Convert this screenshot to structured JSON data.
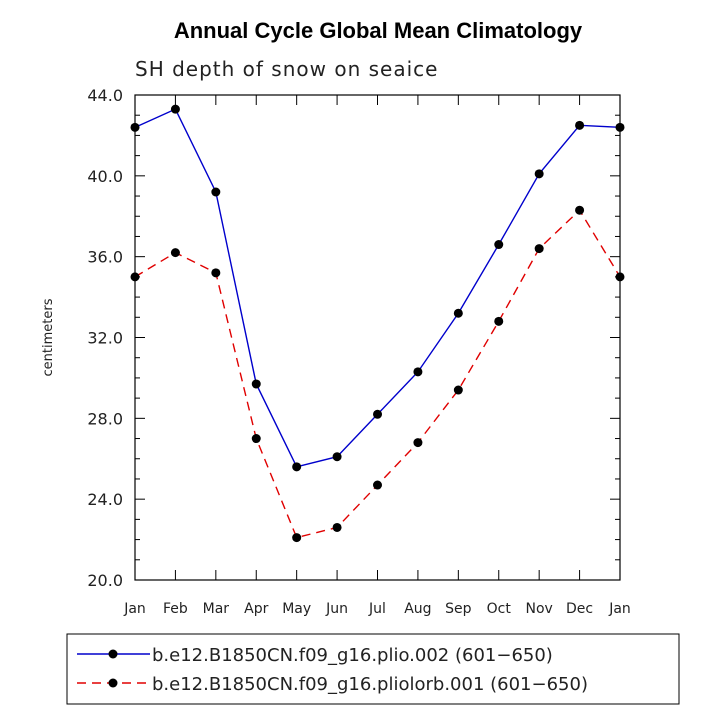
{
  "chart_data": {
    "type": "line",
    "title": "Annual Cycle Global Mean Climatology",
    "subtitle": "SH depth of snow on seaice",
    "xlabel": "",
    "ylabel": "centimeters",
    "categories": [
      "Jan",
      "Feb",
      "Mar",
      "Apr",
      "May",
      "Jun",
      "Jul",
      "Aug",
      "Sep",
      "Oct",
      "Nov",
      "Dec",
      "Jan"
    ],
    "ylim": [
      20.0,
      44.0
    ],
    "yticks": [
      "20.0",
      "24.0",
      "28.0",
      "32.0",
      "36.0",
      "40.0",
      "44.0"
    ],
    "series": [
      {
        "name": "b.e12.B1850CN.f09_g16.plio.002 (601−650)",
        "color": "#0000cc",
        "dash": "solid",
        "values": [
          42.4,
          43.3,
          39.2,
          29.7,
          25.6,
          26.1,
          28.2,
          30.3,
          33.2,
          36.6,
          40.1,
          42.5,
          42.4
        ]
      },
      {
        "name": "b.e12.B1850CN.f09_g16.pliolorb.001 (601−650)",
        "color": "#e00000",
        "dash": "dashed",
        "values": [
          35.0,
          36.2,
          35.2,
          27.0,
          22.1,
          22.6,
          24.7,
          26.8,
          29.4,
          32.8,
          36.4,
          38.3,
          35.0
        ]
      }
    ]
  }
}
